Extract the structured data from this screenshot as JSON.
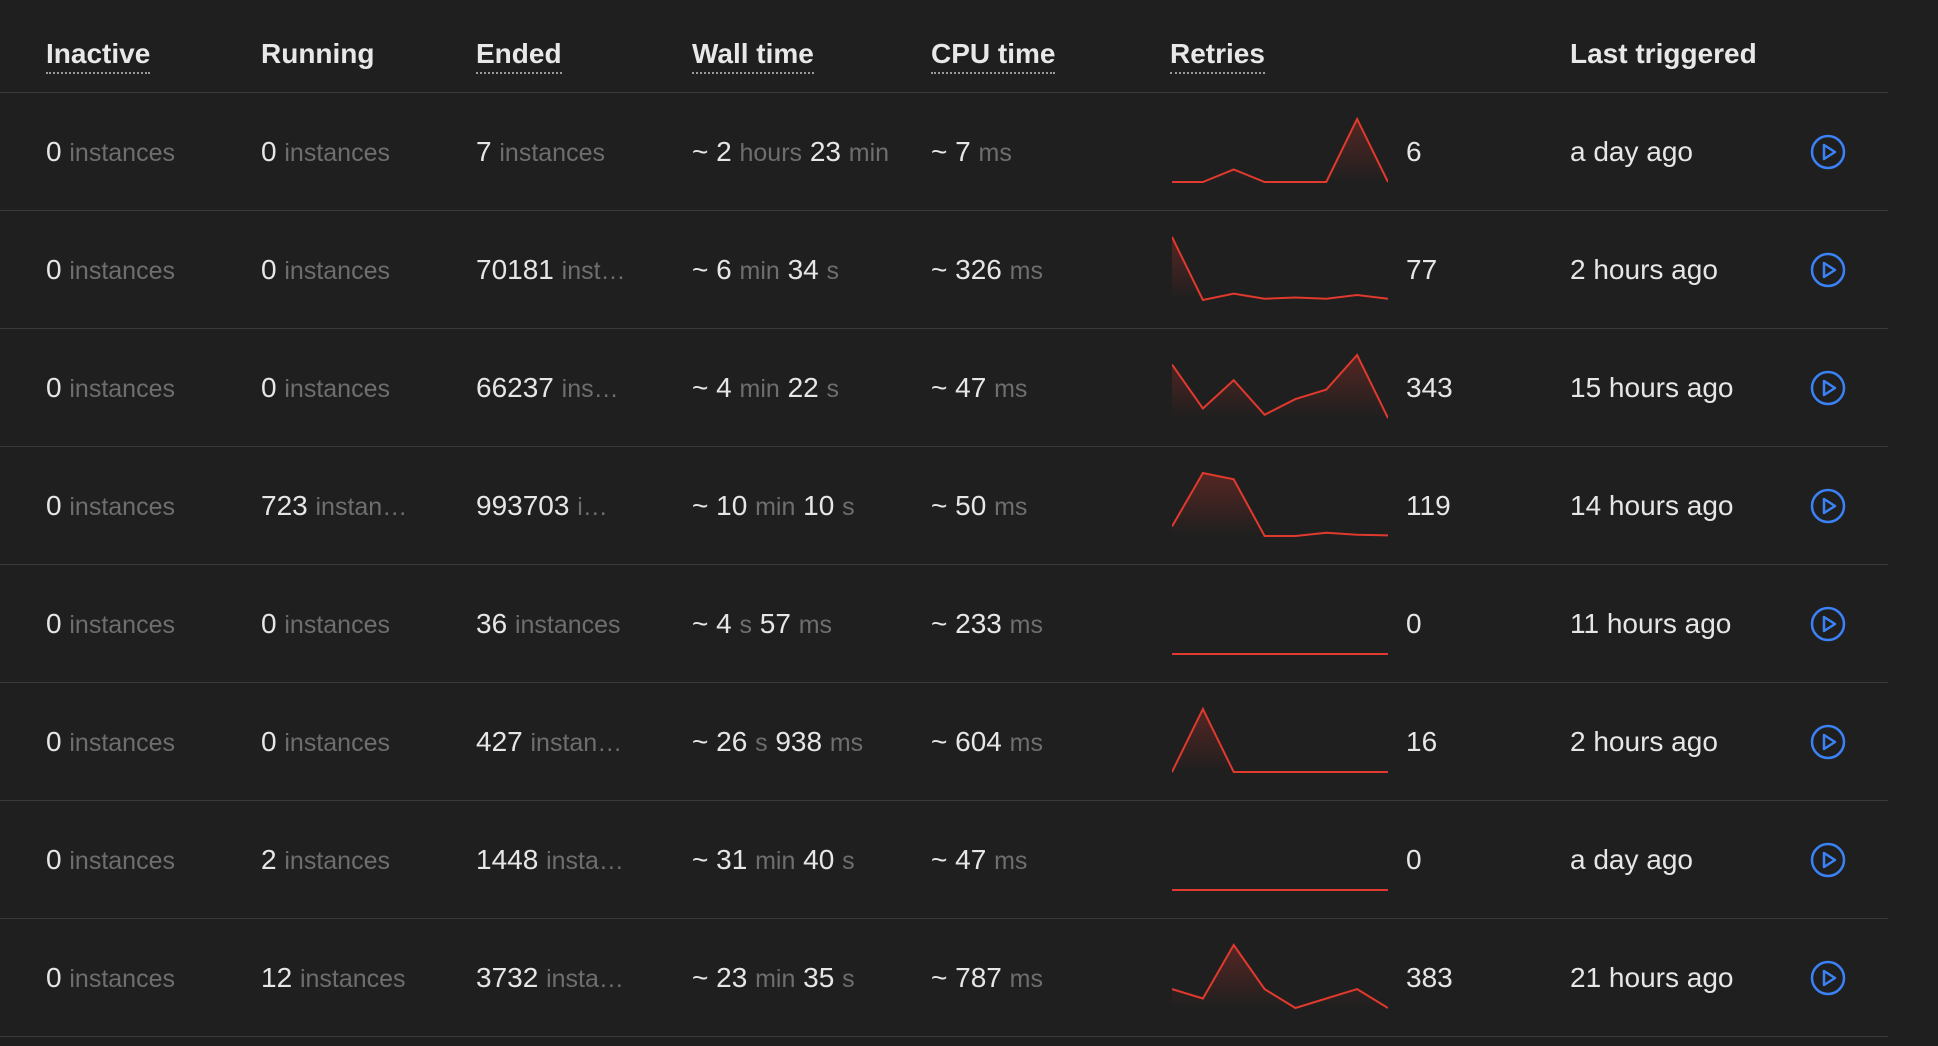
{
  "columns": {
    "inactive": "Inactive",
    "running": "Running",
    "ended": "Ended",
    "wall_time": "Wall time",
    "cpu_time": "CPU time",
    "retries": "Retries",
    "last_triggered": "Last triggered"
  },
  "colors": {
    "accent": "#3b82f6",
    "sparkline": "#e0392d"
  },
  "play_icon": "play-circle-icon",
  "rows": [
    {
      "inactive": {
        "n": "0",
        "u": "instances"
      },
      "running": {
        "n": "0",
        "u": "instances"
      },
      "ended": {
        "n": "7",
        "u": "instances"
      },
      "wall": {
        "a": "2",
        "au": "hours",
        "b": "23",
        "bu": "min"
      },
      "cpu": {
        "n": "7",
        "u": "ms"
      },
      "spark": [
        0,
        0,
        0.2,
        0,
        0,
        0,
        1,
        0
      ],
      "retries": "6",
      "last": "a day ago"
    },
    {
      "inactive": {
        "n": "0",
        "u": "instances"
      },
      "running": {
        "n": "0",
        "u": "instances"
      },
      "ended": {
        "n": "70181",
        "u": "inst…"
      },
      "wall": {
        "a": "6",
        "au": "min",
        "b": "34",
        "bu": "s"
      },
      "cpu": {
        "n": "326",
        "u": "ms"
      },
      "spark": [
        1,
        0,
        0.1,
        0.02,
        0.04,
        0.02,
        0.08,
        0.02
      ],
      "retries": "77",
      "last": "2 hours ago"
    },
    {
      "inactive": {
        "n": "0",
        "u": "instances"
      },
      "running": {
        "n": "0",
        "u": "instances"
      },
      "ended": {
        "n": "66237",
        "u": "ins…"
      },
      "wall": {
        "a": "4",
        "au": "min",
        "b": "22",
        "bu": "s"
      },
      "cpu": {
        "n": "47",
        "u": "ms"
      },
      "spark": [
        0.85,
        0.15,
        0.6,
        0.05,
        0.3,
        0.45,
        1,
        0
      ],
      "retries": "343",
      "last": "15 hours ago"
    },
    {
      "inactive": {
        "n": "0",
        "u": "instances"
      },
      "running": {
        "n": "723",
        "u": "instan…"
      },
      "ended": {
        "n": "993703",
        "u": "i…"
      },
      "wall": {
        "a": "10",
        "au": "min",
        "b": "10",
        "bu": "s"
      },
      "cpu": {
        "n": "50",
        "u": "ms"
      },
      "spark": [
        0.15,
        1,
        0.9,
        0,
        0,
        0.05,
        0.02,
        0.01
      ],
      "retries": "119",
      "last": "14 hours ago"
    },
    {
      "inactive": {
        "n": "0",
        "u": "instances"
      },
      "running": {
        "n": "0",
        "u": "instances"
      },
      "ended": {
        "n": "36",
        "u": "instances"
      },
      "wall": {
        "a": "4",
        "au": "s",
        "b": "57",
        "bu": "ms"
      },
      "cpu": {
        "n": "233",
        "u": "ms"
      },
      "spark": [
        0,
        0,
        0,
        0,
        0,
        0,
        0,
        0
      ],
      "retries": "0",
      "last": "11 hours ago"
    },
    {
      "inactive": {
        "n": "0",
        "u": "instances"
      },
      "running": {
        "n": "0",
        "u": "instances"
      },
      "ended": {
        "n": "427",
        "u": "instan…"
      },
      "wall": {
        "a": "26",
        "au": "s",
        "b": "938",
        "bu": "ms"
      },
      "cpu": {
        "n": "604",
        "u": "ms"
      },
      "spark": [
        0,
        1,
        0,
        0,
        0,
        0,
        0,
        0
      ],
      "retries": "16",
      "last": "2 hours ago"
    },
    {
      "inactive": {
        "n": "0",
        "u": "instances"
      },
      "running": {
        "n": "2",
        "u": "instances"
      },
      "ended": {
        "n": "1448",
        "u": "insta…"
      },
      "wall": {
        "a": "31",
        "au": "min",
        "b": "40",
        "bu": "s"
      },
      "cpu": {
        "n": "47",
        "u": "ms"
      },
      "spark": [
        0,
        0,
        0,
        0,
        0,
        0,
        0,
        0
      ],
      "retries": "0",
      "last": "a day ago"
    },
    {
      "inactive": {
        "n": "0",
        "u": "instances"
      },
      "running": {
        "n": "12",
        "u": "instances"
      },
      "ended": {
        "n": "3732",
        "u": "insta…"
      },
      "wall": {
        "a": "23",
        "au": "min",
        "b": "35",
        "bu": "s"
      },
      "cpu": {
        "n": "787",
        "u": "ms"
      },
      "spark": [
        0.3,
        0.15,
        1,
        0.3,
        0,
        0.15,
        0.3,
        0
      ],
      "retries": "383",
      "last": "21 hours ago"
    }
  ]
}
